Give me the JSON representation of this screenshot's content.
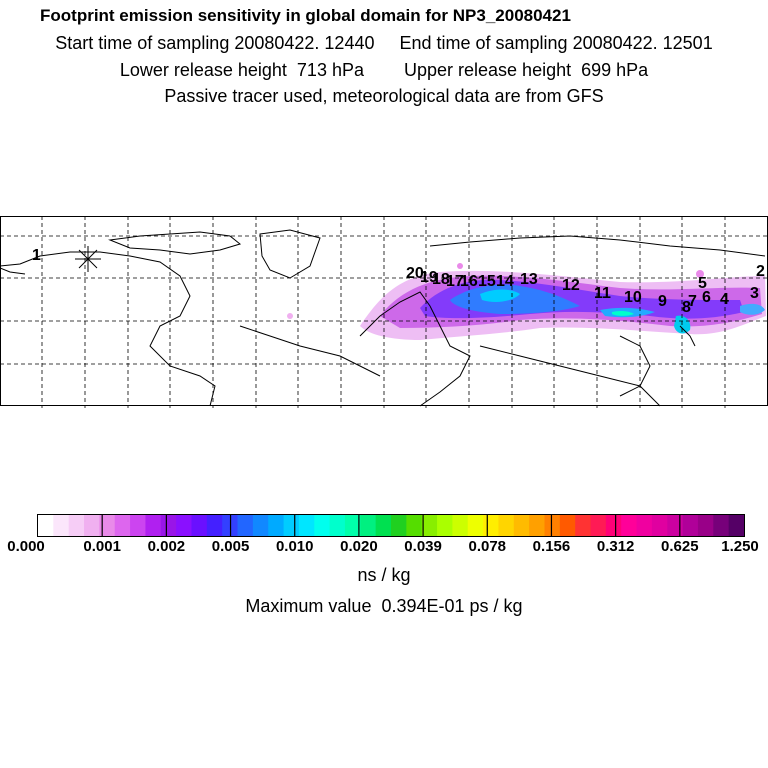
{
  "header": {
    "title": "Footprint emission sensitivity in global domain for NP3_20080421",
    "line1": "Start time of sampling 20080422. 12440     End time of sampling 20080422. 12501",
    "line2": "Lower release height  713 hPa        Upper release height  699 hPa",
    "line3": "Passive tracer used, meteorological data are from GFS"
  },
  "map": {
    "receptor_marker": "star-icon",
    "trajectory_labels": [
      "1",
      "20",
      "19",
      "18",
      "17",
      "16",
      "15",
      "14",
      "13",
      "12",
      "11",
      "10",
      "9",
      "8",
      "7",
      "6",
      "5",
      "4",
      "3",
      "2"
    ],
    "colors": {
      "land_outline": "#000000",
      "grid": "#000000"
    }
  },
  "colorbar": {
    "tick_labels": [
      "0.000",
      "0.001",
      "0.002",
      "0.005",
      "0.010",
      "0.020",
      "0.039",
      "0.078",
      "0.156",
      "0.312",
      "0.625",
      "1.250"
    ],
    "colors": [
      "#ffffff",
      "#fbe6fb",
      "#f6cdf6",
      "#f0b0f0",
      "#e98ae9",
      "#dd66ee",
      "#cc44f0",
      "#b020f0",
      "#9915e8",
      "#8a10ff",
      "#6a10ff",
      "#4420ff",
      "#3340ff",
      "#2266ff",
      "#1188ff",
      "#00aaff",
      "#00ccff",
      "#00e6ff",
      "#00ffee",
      "#00ffcc",
      "#00ffaa",
      "#00f080",
      "#00e050",
      "#20d020",
      "#55dd00",
      "#88ee00",
      "#aaff00",
      "#ccff00",
      "#eeff00",
      "#ffee00",
      "#ffd500",
      "#ffbb00",
      "#ffa000",
      "#ff8000",
      "#ff5a00",
      "#ff3333",
      "#ff1a55",
      "#ff0077",
      "#ff0099",
      "#f000a0",
      "#e000a0",
      "#cc00a0",
      "#b00099",
      "#990088",
      "#77007a",
      "#550066"
    ],
    "unit": "ns / kg",
    "max_value_text": "Maximum value  0.394E-01 ps / kg"
  }
}
